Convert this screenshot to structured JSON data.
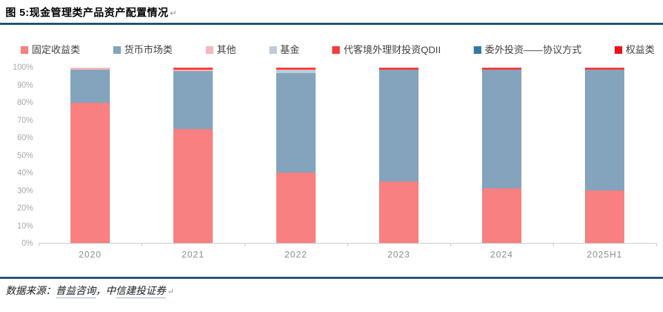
{
  "title": "图 5:现金管理类产品资产配置情况",
  "pilcrow": "↵",
  "legend": [
    {
      "label": "固定收益类",
      "color": "#F88080"
    },
    {
      "label": "货币市场类",
      "color": "#84A3BC"
    },
    {
      "label": "其他",
      "color": "#F5B8BB"
    },
    {
      "label": "基金",
      "color": "#BCCCDB"
    },
    {
      "label": "代客境外理财投资QDII",
      "color": "#FA3B3B"
    },
    {
      "label": "委外投资——协议方式",
      "color": "#3379A7"
    },
    {
      "label": "权益类",
      "color": "#E8121B"
    }
  ],
  "chart_data": {
    "type": "bar",
    "stacked": true,
    "title": "现金管理类产品资产配置情况",
    "categories": [
      "2020",
      "2021",
      "2022",
      "2023",
      "2024",
      "2025H1"
    ],
    "series": [
      {
        "name": "固定收益类",
        "color": "#F88080",
        "values": [
          80,
          65,
          40,
          35,
          31,
          30
        ]
      },
      {
        "name": "货币市场类",
        "color": "#84A3BC",
        "values": [
          19,
          33,
          57,
          64,
          68,
          69
        ]
      },
      {
        "name": "其他",
        "color": "#F5B8BB",
        "values": [
          1,
          1,
          0,
          0,
          0,
          0
        ]
      },
      {
        "name": "基金",
        "color": "#BCCCDB",
        "values": [
          0,
          0,
          2,
          0,
          0,
          0
        ]
      },
      {
        "name": "代客境外理财投资QDII",
        "color": "#FA3B3B",
        "values": [
          0,
          1,
          1,
          1,
          1,
          1
        ]
      },
      {
        "name": "委外投资——协议方式",
        "color": "#3379A7",
        "values": [
          0,
          0,
          0,
          0,
          0,
          0
        ]
      },
      {
        "name": "权益类",
        "color": "#E8121B",
        "values": [
          0,
          0,
          0,
          0,
          0,
          0
        ]
      }
    ],
    "yticks": [
      "0%",
      "10%",
      "20%",
      "30%",
      "40%",
      "50%",
      "60%",
      "70%",
      "80%",
      "90%",
      "100%"
    ],
    "ylim": [
      0,
      100
    ],
    "grid": false,
    "legend_position": "top"
  },
  "footer": {
    "parts": [
      {
        "text": "数据来源：",
        "link": false
      },
      {
        "text": "普益咨询",
        "link": true
      },
      {
        "text": "，中",
        "link": false
      },
      {
        "text": "信建投证券",
        "link": true
      }
    ],
    "pilcrow": "↵"
  }
}
